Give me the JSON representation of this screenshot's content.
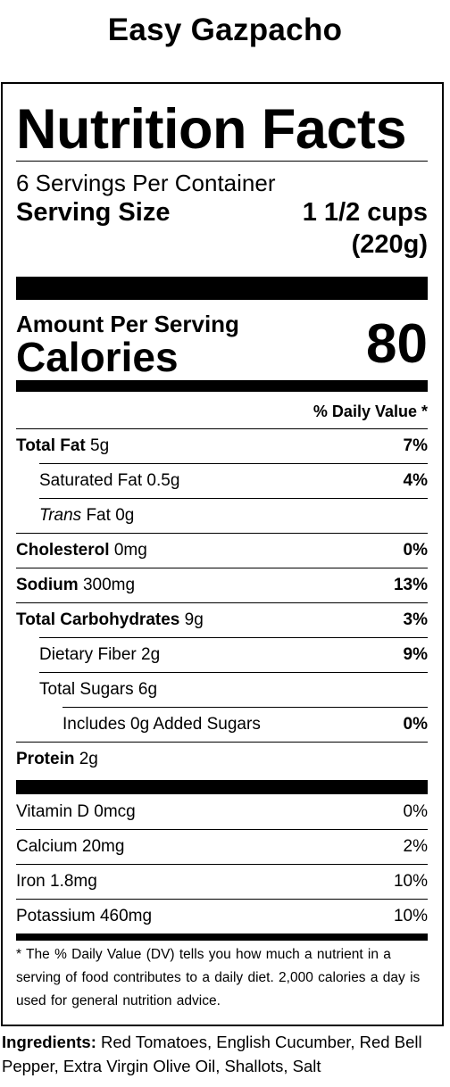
{
  "recipe_title": "Easy Gazpacho",
  "label": {
    "title": "Nutrition Facts",
    "servings_per_container": "6 Servings Per Container",
    "serving_size_label": "Serving Size",
    "serving_size_value_1": "1 1/2 cups",
    "serving_size_value_2": "(220g)",
    "amount_per_serving": "Amount Per Serving",
    "calories_label": "Calories",
    "calories_value": "80",
    "daily_value_header": "% Daily Value *"
  },
  "nutrients": {
    "total_fat": {
      "name": "Total Fat",
      "amount": "5g",
      "dv": "7%"
    },
    "saturated_fat": {
      "name": "Saturated Fat",
      "amount": "0.5g",
      "dv": "4%"
    },
    "trans_fat": {
      "name_italic": "Trans",
      "name_rest": "Fat",
      "amount": "0g"
    },
    "cholesterol": {
      "name": "Cholesterol",
      "amount": "0mg",
      "dv": "0%"
    },
    "sodium": {
      "name": "Sodium",
      "amount": "300mg",
      "dv": "13%"
    },
    "total_carbs": {
      "name": "Total Carbohydrates",
      "amount": "9g",
      "dv": "3%"
    },
    "dietary_fiber": {
      "name": "Dietary Fiber",
      "amount": "2g",
      "dv": "9%"
    },
    "total_sugars": {
      "name": "Total Sugars",
      "amount": "6g"
    },
    "added_sugars": {
      "name": "Includes 0g Added Sugars",
      "dv": "0%"
    },
    "protein": {
      "name": "Protein",
      "amount": "2g"
    }
  },
  "vitamins": [
    {
      "name": "Vitamin D 0mcg",
      "dv": "0%"
    },
    {
      "name": "Calcium 20mg",
      "dv": "2%"
    },
    {
      "name": "Iron 1.8mg",
      "dv": "10%"
    },
    {
      "name": "Potassium 460mg",
      "dv": "10%"
    }
  ],
  "footnote": "* The % Daily Value (DV) tells you how much a nutrient in a serving of food contributes to a daily diet. 2,000 calories a day is used for general nutrition advice.",
  "ingredients": {
    "label": "Ingredients:",
    "text": "Red Tomatoes, English Cucumber, Red Bell Pepper, Extra Virgin Olive Oil, Shallots, Salt"
  }
}
